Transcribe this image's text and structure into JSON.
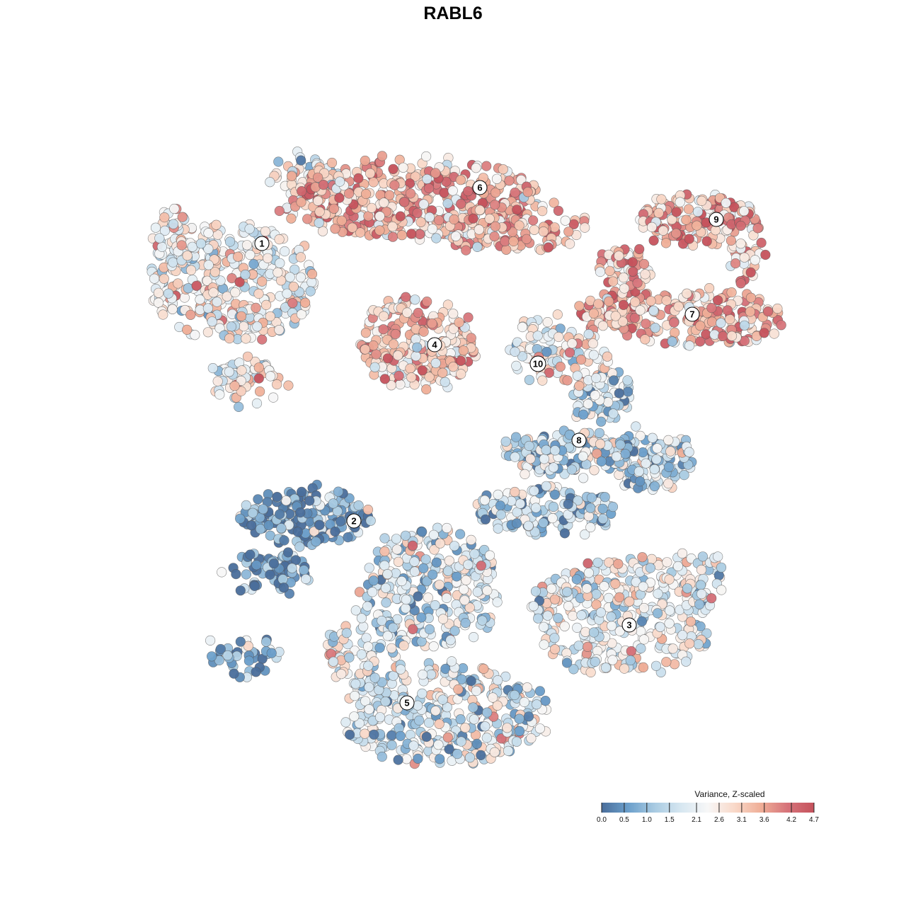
{
  "chart_data": {
    "type": "scatter",
    "title": "RABL6",
    "xlabel": "",
    "ylabel": "",
    "grid": false,
    "legend_placement": "bottom-right",
    "color_scale": {
      "title": "Variance, Z-scaled",
      "min": 0.0,
      "max": 4.7,
      "ticks": [
        "0.0",
        "0.5",
        "1.0",
        "1.5",
        "2.1",
        "2.6",
        "3.1",
        "3.6",
        "4.2",
        "4.7"
      ],
      "tick_values": [
        0.0,
        0.5,
        1.0,
        1.5,
        2.1,
        2.6,
        3.1,
        3.6,
        4.2,
        4.7
      ],
      "colors": [
        "#4a6e9b",
        "#6b9fcb",
        "#a9cbe2",
        "#d7e7f1",
        "#f7f7f7",
        "#f9d9c9",
        "#efae97",
        "#d6737a",
        "#c5525c"
      ]
    },
    "clusters": [
      {
        "label": "1",
        "mean_value": 2.4
      },
      {
        "label": "2",
        "mean_value": 0.6
      },
      {
        "label": "3",
        "mean_value": 2.0
      },
      {
        "label": "4",
        "mean_value": 3.2
      },
      {
        "label": "5",
        "mean_value": 1.9
      },
      {
        "label": "6",
        "mean_value": 3.4
      },
      {
        "label": "7",
        "mean_value": 3.3
      },
      {
        "label": "8",
        "mean_value": 1.5
      },
      {
        "label": "9",
        "mean_value": 3.4
      },
      {
        "label": "10",
        "mean_value": 2.4
      }
    ]
  }
}
